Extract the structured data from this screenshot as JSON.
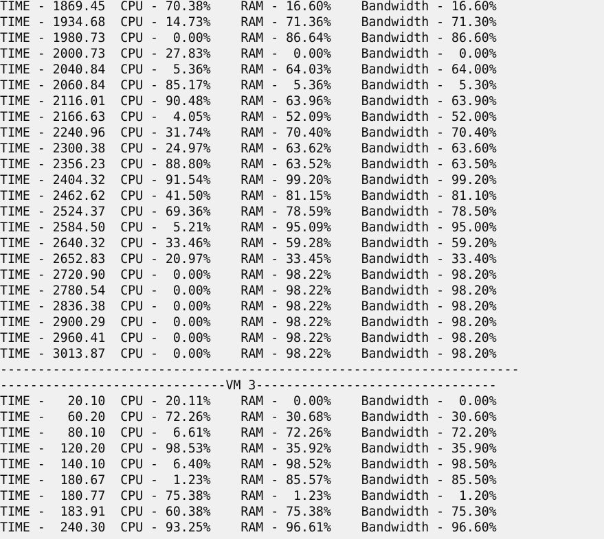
{
  "console": {
    "lines": [
      "TIME - 1869.45  CPU - 70.38%    RAM - 16.60%    Bandwidth - 16.60%",
      "TIME - 1934.68  CPU - 14.73%    RAM - 71.36%    Bandwidth - 71.30%",
      "TIME - 1980.73  CPU -  0.00%    RAM - 86.64%    Bandwidth - 86.60%",
      "TIME - 2000.73  CPU - 27.83%    RAM -  0.00%    Bandwidth -  0.00%",
      "TIME - 2040.84  CPU -  5.36%    RAM - 64.03%    Bandwidth - 64.00%",
      "TIME - 2060.84  CPU - 85.17%    RAM -  5.36%    Bandwidth -  5.30%",
      "TIME - 2116.01  CPU - 90.48%    RAM - 63.96%    Bandwidth - 63.90%",
      "TIME - 2166.63  CPU -  4.05%    RAM - 52.09%    Bandwidth - 52.00%",
      "TIME - 2240.96  CPU - 31.74%    RAM - 70.40%    Bandwidth - 70.40%",
      "TIME - 2300.38  CPU - 24.97%    RAM - 63.62%    Bandwidth - 63.60%",
      "TIME - 2356.23  CPU - 88.80%    RAM - 63.52%    Bandwidth - 63.50%",
      "TIME - 2404.32  CPU - 91.54%    RAM - 99.20%    Bandwidth - 99.20%",
      "TIME - 2462.62  CPU - 41.50%    RAM - 81.15%    Bandwidth - 81.10%",
      "TIME - 2524.37  CPU - 69.36%    RAM - 78.59%    Bandwidth - 78.50%",
      "TIME - 2584.50  CPU -  5.21%    RAM - 95.09%    Bandwidth - 95.00%",
      "TIME - 2640.32  CPU - 33.46%    RAM - 59.28%    Bandwidth - 59.20%",
      "TIME - 2652.83  CPU - 20.97%    RAM - 33.45%    Bandwidth - 33.40%",
      "TIME - 2720.90  CPU -  0.00%    RAM - 98.22%    Bandwidth - 98.20%",
      "TIME - 2780.54  CPU -  0.00%    RAM - 98.22%    Bandwidth - 98.20%",
      "TIME - 2836.38  CPU -  0.00%    RAM - 98.22%    Bandwidth - 98.20%",
      "TIME - 2900.29  CPU -  0.00%    RAM - 98.22%    Bandwidth - 98.20%",
      "TIME - 2960.41  CPU -  0.00%    RAM - 98.22%    Bandwidth - 98.20%",
      "TIME - 3013.87  CPU -  0.00%    RAM - 98.22%    Bandwidth - 98.20%",
      "---------------------------------------------------------------------",
      "------------------------------VM 3--------------------------------",
      "TIME -   20.10  CPU - 20.11%    RAM -  0.00%    Bandwidth -  0.00%",
      "TIME -   60.20  CPU - 72.26%    RAM - 30.68%    Bandwidth - 30.60%",
      "TIME -   80.10  CPU -  6.61%    RAM - 72.26%    Bandwidth - 72.20%",
      "TIME -  120.20  CPU - 98.53%    RAM - 35.92%    Bandwidth - 35.90%",
      "TIME -  140.10  CPU -  6.40%    RAM - 98.52%    Bandwidth - 98.50%",
      "TIME -  180.67  CPU -  1.23%    RAM - 85.57%    Bandwidth - 85.50%",
      "TIME -  180.77  CPU - 75.38%    RAM -  1.23%    Bandwidth -  1.20%",
      "TIME -  183.91  CPU - 60.38%    RAM - 75.38%    Bandwidth - 75.30%",
      "TIME -  240.30  CPU - 93.25%    RAM - 96.61%    Bandwidth - 96.60%"
    ]
  }
}
